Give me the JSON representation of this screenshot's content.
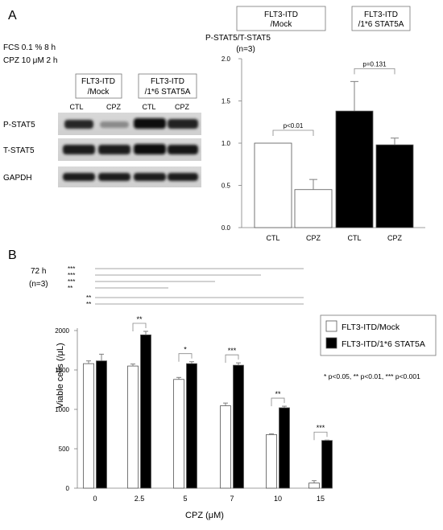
{
  "panel_a": {
    "label": "A",
    "conditions": [
      "FCS 0.1 % 8 h",
      "CPZ 10 μM 2 h"
    ],
    "blot": {
      "group_labels": [
        [
          "FLT3-ITD",
          "/Mock"
        ],
        [
          "FLT3-ITD",
          "/1*6 STAT5A"
        ]
      ],
      "lane_labels": [
        "CTL",
        "CPZ",
        "CTL",
        "CPZ"
      ],
      "row_labels": [
        "P-STAT5",
        "T-STAT5",
        "GAPDH"
      ]
    }
  },
  "panel_b": {
    "label": "B",
    "time": "72 h",
    "n": "(n=3)",
    "sig_footnote": "* p<0.05, ** p<0.01, *** p<0.001"
  },
  "colors": {
    "mock": "#ffffff",
    "stat5a": "#000000",
    "axis": "#7f7f7f",
    "error": "#7f7f7f"
  },
  "chart_data": [
    {
      "type": "bar",
      "title": "P-STAT5/T-STAT5",
      "subtitle": "(n=3)",
      "group_labels": [
        [
          "FLT3-ITD",
          "/Mock"
        ],
        [
          "FLT3-ITD",
          "/1*6 STAT5A"
        ]
      ],
      "categories": [
        "CTL",
        "CPZ",
        "CTL",
        "CPZ"
      ],
      "values": [
        1.0,
        0.45,
        1.38,
        0.98
      ],
      "errors": [
        0,
        0.12,
        0.35,
        0.08
      ],
      "bar_colors": [
        "#ffffff",
        "#ffffff",
        "#000000",
        "#000000"
      ],
      "ylim": [
        0,
        2.0
      ],
      "yticks": [
        0,
        0.5,
        1.0,
        1.5,
        2.0
      ],
      "ytick_labels": [
        "0.0",
        "0.5",
        "1.0",
        "1.5",
        "2.0"
      ],
      "annotations": [
        {
          "text": "p<0.01",
          "bars": [
            0,
            1
          ]
        },
        {
          "text": "p=0.131",
          "bars": [
            2,
            3
          ]
        }
      ]
    },
    {
      "type": "bar",
      "xlabel": "CPZ (μM)",
      "ylabel": "Viable cells (/μL)",
      "categories": [
        "0",
        "2.5",
        "5",
        "7",
        "10",
        "15"
      ],
      "ylim": [
        0,
        2000
      ],
      "yticks": [
        0,
        500,
        1000,
        1500,
        2000
      ],
      "legend_position": "top-right",
      "series": [
        {
          "name": "FLT3-ITD/Mock",
          "color": "#ffffff",
          "values": [
            1580,
            1550,
            1380,
            1045,
            680,
            65
          ],
          "errors": [
            35,
            25,
            25,
            35,
            10,
            30
          ]
        },
        {
          "name": "FLT3-ITD/1*6 STAT5A",
          "color": "#000000",
          "values": [
            1615,
            1945,
            1580,
            1560,
            1020,
            605
          ],
          "errors": [
            85,
            45,
            25,
            30,
            20,
            5
          ]
        }
      ],
      "pair_significance": [
        "",
        "**",
        "*",
        "***",
        "**",
        "***"
      ],
      "control_comparisons": [
        {
          "stars": "***",
          "to": "15"
        },
        {
          "stars": "***",
          "to": "10"
        },
        {
          "stars": "***",
          "to": "7"
        },
        {
          "stars": "**",
          "to": "5"
        },
        {
          "stars": "**",
          "to": "15"
        },
        {
          "stars": "**",
          "to": "15"
        }
      ]
    }
  ]
}
